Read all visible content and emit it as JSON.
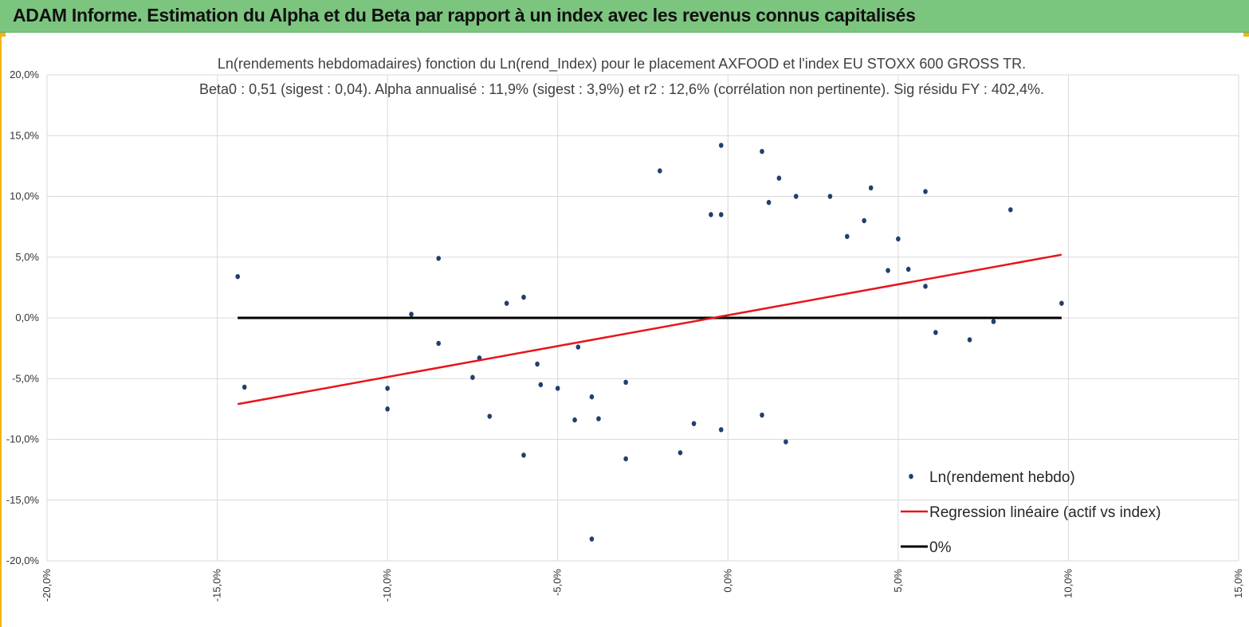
{
  "header": {
    "title": "ADAM Informe. Estimation du Alpha et du Beta par rapport à un index avec les revenus connus capitalisés"
  },
  "chart_data": {
    "type": "scatter",
    "title_line1": "Ln(rendements hebdomadaires) fonction du Ln(rend_Index) pour le placement AXFOOD et l'index EU STOXX 600 GROSS TR.",
    "title_line2": "Beta0 : 0,51 (sigest : 0,04). Alpha annualisé : 11,9% (sigest : 3,9%) et r2 : 12,6% (corrélation non pertinente). Sig résidu FY : 402,4%.",
    "xlim": [
      -0.2,
      0.15
    ],
    "ylim": [
      -0.2,
      0.2
    ],
    "x_ticks": [
      -0.2,
      -0.15,
      -0.1,
      -0.05,
      0.0,
      0.05,
      0.1,
      0.15
    ],
    "x_tick_labels": [
      "-20,0%",
      "-15,0%",
      "-10,0%",
      "-5,0%",
      "0,0%",
      "5,0%",
      "10,0%",
      "15,0%"
    ],
    "y_ticks": [
      0.2,
      0.15,
      0.1,
      0.05,
      0.0,
      -0.05,
      -0.1,
      -0.15,
      -0.2
    ],
    "y_tick_labels": [
      "20,0%",
      "15,0%",
      "10,0%",
      "5,0%",
      "0,0%",
      "-5,0%",
      "-10,0%",
      "-15,0%",
      "-20,0%"
    ],
    "grid": true,
    "legend_position": "bottom-right",
    "series": [
      {
        "name": "Ln(rendement hebdo)",
        "kind": "scatter",
        "color": "#203f6e",
        "points": [
          [
            -0.144,
            0.034
          ],
          [
            -0.142,
            -0.057
          ],
          [
            -0.093,
            0.003
          ],
          [
            -0.1,
            -0.058
          ],
          [
            -0.1,
            -0.075
          ],
          [
            -0.085,
            0.049
          ],
          [
            -0.085,
            -0.021
          ],
          [
            -0.075,
            -0.049
          ],
          [
            -0.073,
            -0.033
          ],
          [
            -0.07,
            -0.081
          ],
          [
            -0.065,
            0.012
          ],
          [
            -0.06,
            0.017
          ],
          [
            -0.06,
            -0.113
          ],
          [
            -0.056,
            -0.038
          ],
          [
            -0.055,
            -0.055
          ],
          [
            -0.05,
            -0.058
          ],
          [
            -0.045,
            -0.084
          ],
          [
            -0.044,
            -0.024
          ],
          [
            -0.04,
            -0.065
          ],
          [
            -0.04,
            -0.182
          ],
          [
            -0.038,
            -0.083
          ],
          [
            -0.03,
            -0.116
          ],
          [
            -0.03,
            -0.053
          ],
          [
            -0.02,
            0.121
          ],
          [
            -0.014,
            -0.111
          ],
          [
            -0.01,
            -0.087
          ],
          [
            -0.005,
            0.085
          ],
          [
            -0.002,
            0.142
          ],
          [
            -0.002,
            0.085
          ],
          [
            0.01,
            0.137
          ],
          [
            0.012,
            0.095
          ],
          [
            0.015,
            0.115
          ],
          [
            0.02,
            0.1
          ],
          [
            0.03,
            0.1
          ],
          [
            0.042,
            0.107
          ],
          [
            0.058,
            0.104
          ],
          [
            0.083,
            0.089
          ],
          [
            0.098,
            0.012
          ],
          [
            0.078,
            -0.003
          ],
          [
            0.071,
            -0.018
          ],
          [
            0.061,
            -0.012
          ],
          [
            0.058,
            0.026
          ],
          [
            0.053,
            0.04
          ],
          [
            0.05,
            0.065
          ],
          [
            0.047,
            0.039
          ],
          [
            0.04,
            0.08
          ],
          [
            0.035,
            0.067
          ],
          [
            0.017,
            -0.102
          ],
          [
            0.01,
            -0.08
          ],
          [
            -0.002,
            -0.092
          ]
        ]
      },
      {
        "name": "Regression linéaire (actif vs index)",
        "kind": "line",
        "color": "#e8141b",
        "x": [
          -0.144,
          0.098
        ],
        "y": [
          -0.071,
          0.052
        ]
      },
      {
        "name": "0%",
        "kind": "line",
        "color": "#000000",
        "x": [
          -0.144,
          0.098
        ],
        "y": [
          0.0,
          0.0
        ]
      }
    ]
  }
}
